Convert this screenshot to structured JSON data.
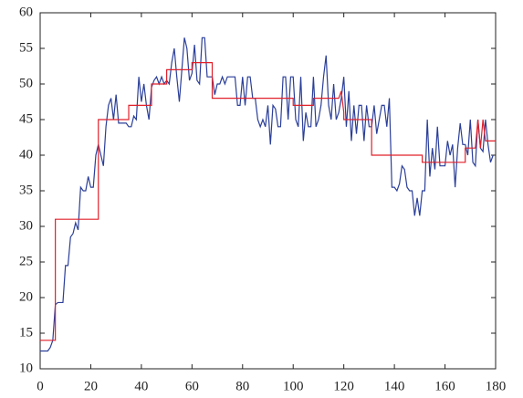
{
  "chart_data": {
    "type": "line",
    "xlim": [
      0,
      180
    ],
    "xticks": [
      0,
      20,
      40,
      60,
      80,
      100,
      120,
      140,
      160,
      180
    ],
    "ylim": [
      10,
      60
    ],
    "yticks": [
      10,
      15,
      20,
      25,
      30,
      35,
      40,
      45,
      50,
      55,
      60
    ],
    "grid": false,
    "series": [
      {
        "color": "#2b3f99",
        "x": [
          0,
          1,
          2,
          3,
          4,
          5,
          6,
          7,
          8,
          9,
          10,
          11,
          12,
          13,
          14,
          15,
          16,
          17,
          18,
          19,
          20,
          21,
          22,
          23,
          24,
          25,
          26,
          27,
          28,
          29,
          30,
          31,
          32,
          33,
          34,
          35,
          36,
          37,
          38,
          39,
          40,
          41,
          42,
          43,
          44,
          45,
          46,
          47,
          48,
          49,
          50,
          51,
          52,
          53,
          54,
          55,
          56,
          57,
          58,
          59,
          60,
          61,
          62,
          63,
          64,
          65,
          66,
          67,
          68,
          69,
          70,
          71,
          72,
          73,
          74,
          75,
          76,
          77,
          78,
          79,
          80,
          81,
          82,
          83,
          84,
          85,
          86,
          87,
          88,
          89,
          90,
          91,
          92,
          93,
          94,
          95,
          96,
          97,
          98,
          99,
          100,
          101,
          102,
          103,
          104,
          105,
          106,
          107,
          108,
          109,
          110,
          111,
          112,
          113,
          114,
          115,
          116,
          117,
          118,
          119,
          120,
          121,
          122,
          123,
          124,
          125,
          126,
          127,
          128,
          129,
          130,
          131,
          132,
          133,
          134,
          135,
          136,
          137,
          138,
          139,
          140,
          141,
          142,
          143,
          144,
          145,
          146,
          147,
          148,
          149,
          150,
          151,
          152,
          153,
          154,
          155,
          156,
          157,
          158,
          159,
          160,
          161,
          162,
          163,
          164,
          165,
          166,
          167,
          168,
          169,
          170,
          171,
          172,
          173,
          174,
          175,
          176,
          177,
          178,
          179
        ],
        "values": [
          12.5,
          12.5,
          12.5,
          12.5,
          13,
          14,
          19,
          19.3,
          19.3,
          19.3,
          24.5,
          24.5,
          28.5,
          29,
          30.5,
          29.5,
          35.5,
          35,
          35,
          37,
          35.5,
          35.5,
          40,
          41.5,
          40,
          38.5,
          44,
          47,
          48,
          45,
          48.5,
          44.5,
          44.5,
          44.5,
          44.5,
          44,
          44,
          45.5,
          45,
          51,
          47.5,
          50,
          47,
          45,
          49.5,
          50.5,
          51,
          50,
          51,
          50,
          50.5,
          50,
          53,
          55,
          51,
          47.5,
          52,
          56.5,
          55,
          50.5,
          51.5,
          55.5,
          50.5,
          50,
          56.5,
          56.5,
          51,
          51,
          51,
          48.5,
          50,
          50,
          51,
          50,
          51,
          51,
          51,
          51,
          47,
          47,
          51,
          47,
          51,
          51,
          48,
          48,
          45,
          44,
          45,
          44,
          47,
          41.5,
          47,
          46.5,
          44,
          44,
          51,
          51,
          45,
          51,
          51,
          45,
          44,
          51,
          42,
          46,
          44,
          44,
          51,
          44,
          45,
          47,
          51,
          54,
          47,
          45,
          50,
          45,
          46,
          48,
          51,
          44,
          49,
          42,
          47,
          43,
          47,
          47,
          42,
          47,
          44,
          44,
          47,
          43,
          45,
          47,
          47,
          44,
          48,
          35.5,
          35.5,
          35,
          36,
          38.5,
          38,
          35.5,
          35,
          35,
          31.5,
          34,
          31.5,
          35,
          35,
          45,
          37,
          41,
          38,
          44,
          38.5,
          38.5,
          38.5,
          42,
          40,
          41.5,
          35.5,
          41,
          44.5,
          41.5,
          41.5,
          40,
          45,
          39,
          38.5,
          45,
          41,
          40.5,
          45,
          41.5,
          39,
          40
        ]
      },
      {
        "color": "#e0202a",
        "x": [
          0,
          6,
          6,
          23,
          23,
          35,
          35,
          44,
          44,
          50,
          50,
          60,
          60,
          68,
          68,
          100,
          100,
          108,
          108,
          118,
          119,
          120,
          120,
          131,
          131,
          151,
          151,
          168,
          168,
          172,
          173,
          174,
          175,
          176,
          180
        ],
        "values": [
          14,
          14,
          31,
          31,
          45,
          45,
          47,
          47,
          50,
          50,
          52,
          52,
          53,
          53,
          48,
          48,
          47,
          47,
          48,
          48,
          49,
          46,
          45,
          45,
          40,
          40,
          39,
          39,
          41,
          41,
          45,
          41,
          45,
          42,
          42
        ]
      }
    ]
  }
}
